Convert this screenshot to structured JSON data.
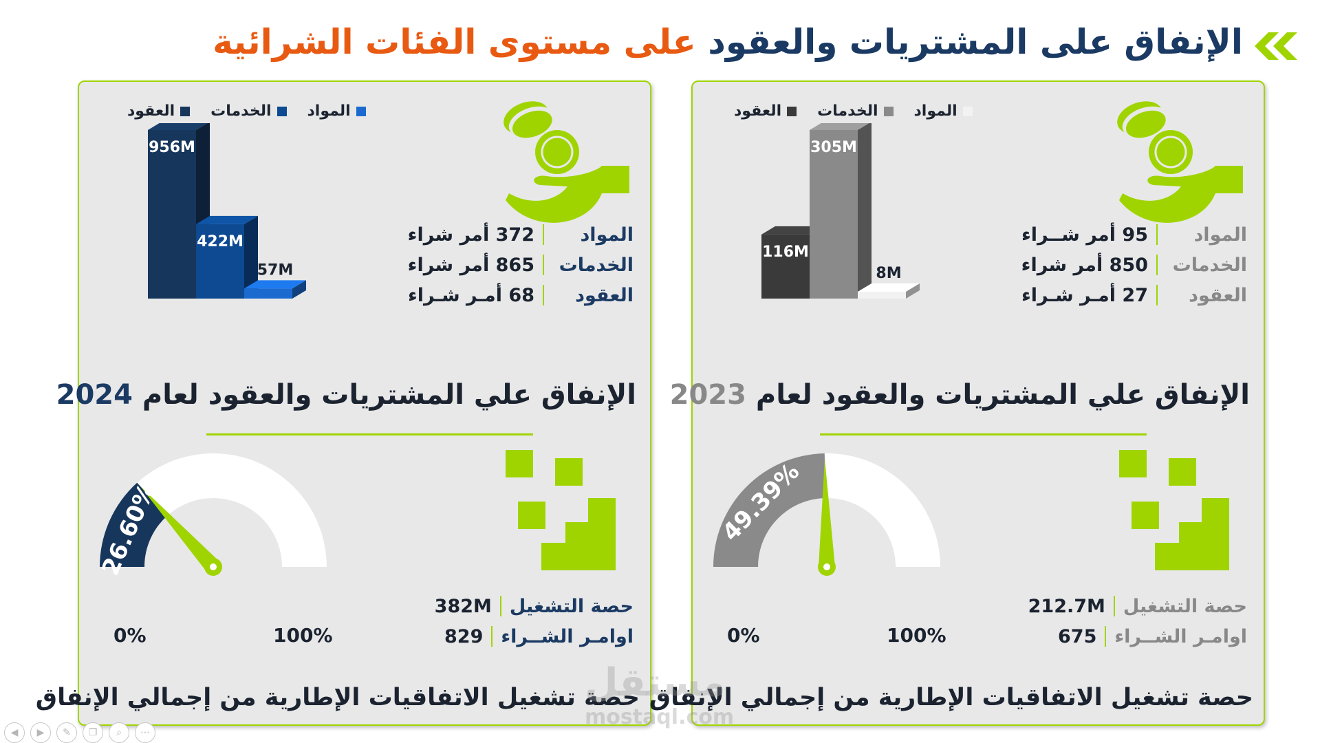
{
  "title": {
    "part1": "الإنفاق على المشتريات والعقود",
    "part2": "على مستوى الفئات الشرائية"
  },
  "colors": {
    "accent": "#9fd400",
    "navy": "#1b3a63",
    "orange": "#e85a12"
  },
  "panels": {
    "y2024": {
      "legend": [
        "المواد",
        "الخدمات",
        "العقود"
      ],
      "chart_data": {
        "type": "bar",
        "categories": [
          "العقود",
          "الخدمات",
          "المواد"
        ],
        "values": [
          956,
          422,
          57
        ],
        "labels": [
          "956M",
          "422M",
          "57M"
        ],
        "colors": [
          "#17365c",
          "#0d4a91",
          "#1a6ad0"
        ]
      },
      "stats": [
        {
          "label": "المواد",
          "value": "372  أمر شراء"
        },
        {
          "label": "الخدمات",
          "value": "865 أمر شراء"
        },
        {
          "label": "العقود",
          "value": "68 أمـر شـراء"
        }
      ],
      "heading_text": "الإنفاق علي المشتريات والعقود لعام",
      "heading_year": "2024",
      "gauge": {
        "percent": 26.6,
        "label": "26.60%",
        "min": "0%",
        "max": "100%",
        "color": "#17365c"
      },
      "gauge_stats": [
        {
          "label": "حصة التشغيل",
          "value": "382M"
        },
        {
          "label": "اوامـر الشــراء",
          "value": "829"
        }
      ],
      "footer": "حصة تشغيل الاتفاقيات الإطارية من إجمالي الإنفاق",
      "label_color": "#1b3a63"
    },
    "y2023": {
      "legend": [
        "المواد",
        "الخدمات",
        "العقود"
      ],
      "chart_data": {
        "type": "bar",
        "categories": [
          "العقود",
          "الخدمات",
          "المواد"
        ],
        "values": [
          116,
          305,
          8
        ],
        "labels": [
          "116M",
          "305M",
          "8M"
        ],
        "colors": [
          "#3a3a3a",
          "#8a8a8a",
          "#f2f2f2"
        ]
      },
      "stats": [
        {
          "label": "المواد",
          "value": "95 أمر شــراء"
        },
        {
          "label": "الخدمات",
          "value": "850 أمر شراء"
        },
        {
          "label": "العقود",
          "value": "27 أمـر شـراء"
        }
      ],
      "heading_text": "الإنفاق علي المشتريات والعقود لعام",
      "heading_year": "2023",
      "gauge": {
        "percent": 49.39,
        "label": "49.39%",
        "min": "0%",
        "max": "100%",
        "color": "#8a8a8a"
      },
      "gauge_stats": [
        {
          "label": "حصة التشغيل",
          "value": "212.7M"
        },
        {
          "label": "اوامـر الشــراء",
          "value": "675"
        }
      ],
      "footer": "حصة تشغيل الاتفاقيات الإطارية من إجمالي الإنفاق",
      "label_color": "#888888"
    }
  },
  "watermark": {
    "arabic": "مستقل",
    "latin": "mostaql.com"
  },
  "nav_icons": [
    "prev-icon",
    "next-icon",
    "pen-icon",
    "copy-icon",
    "zoom-icon",
    "more-icon"
  ]
}
